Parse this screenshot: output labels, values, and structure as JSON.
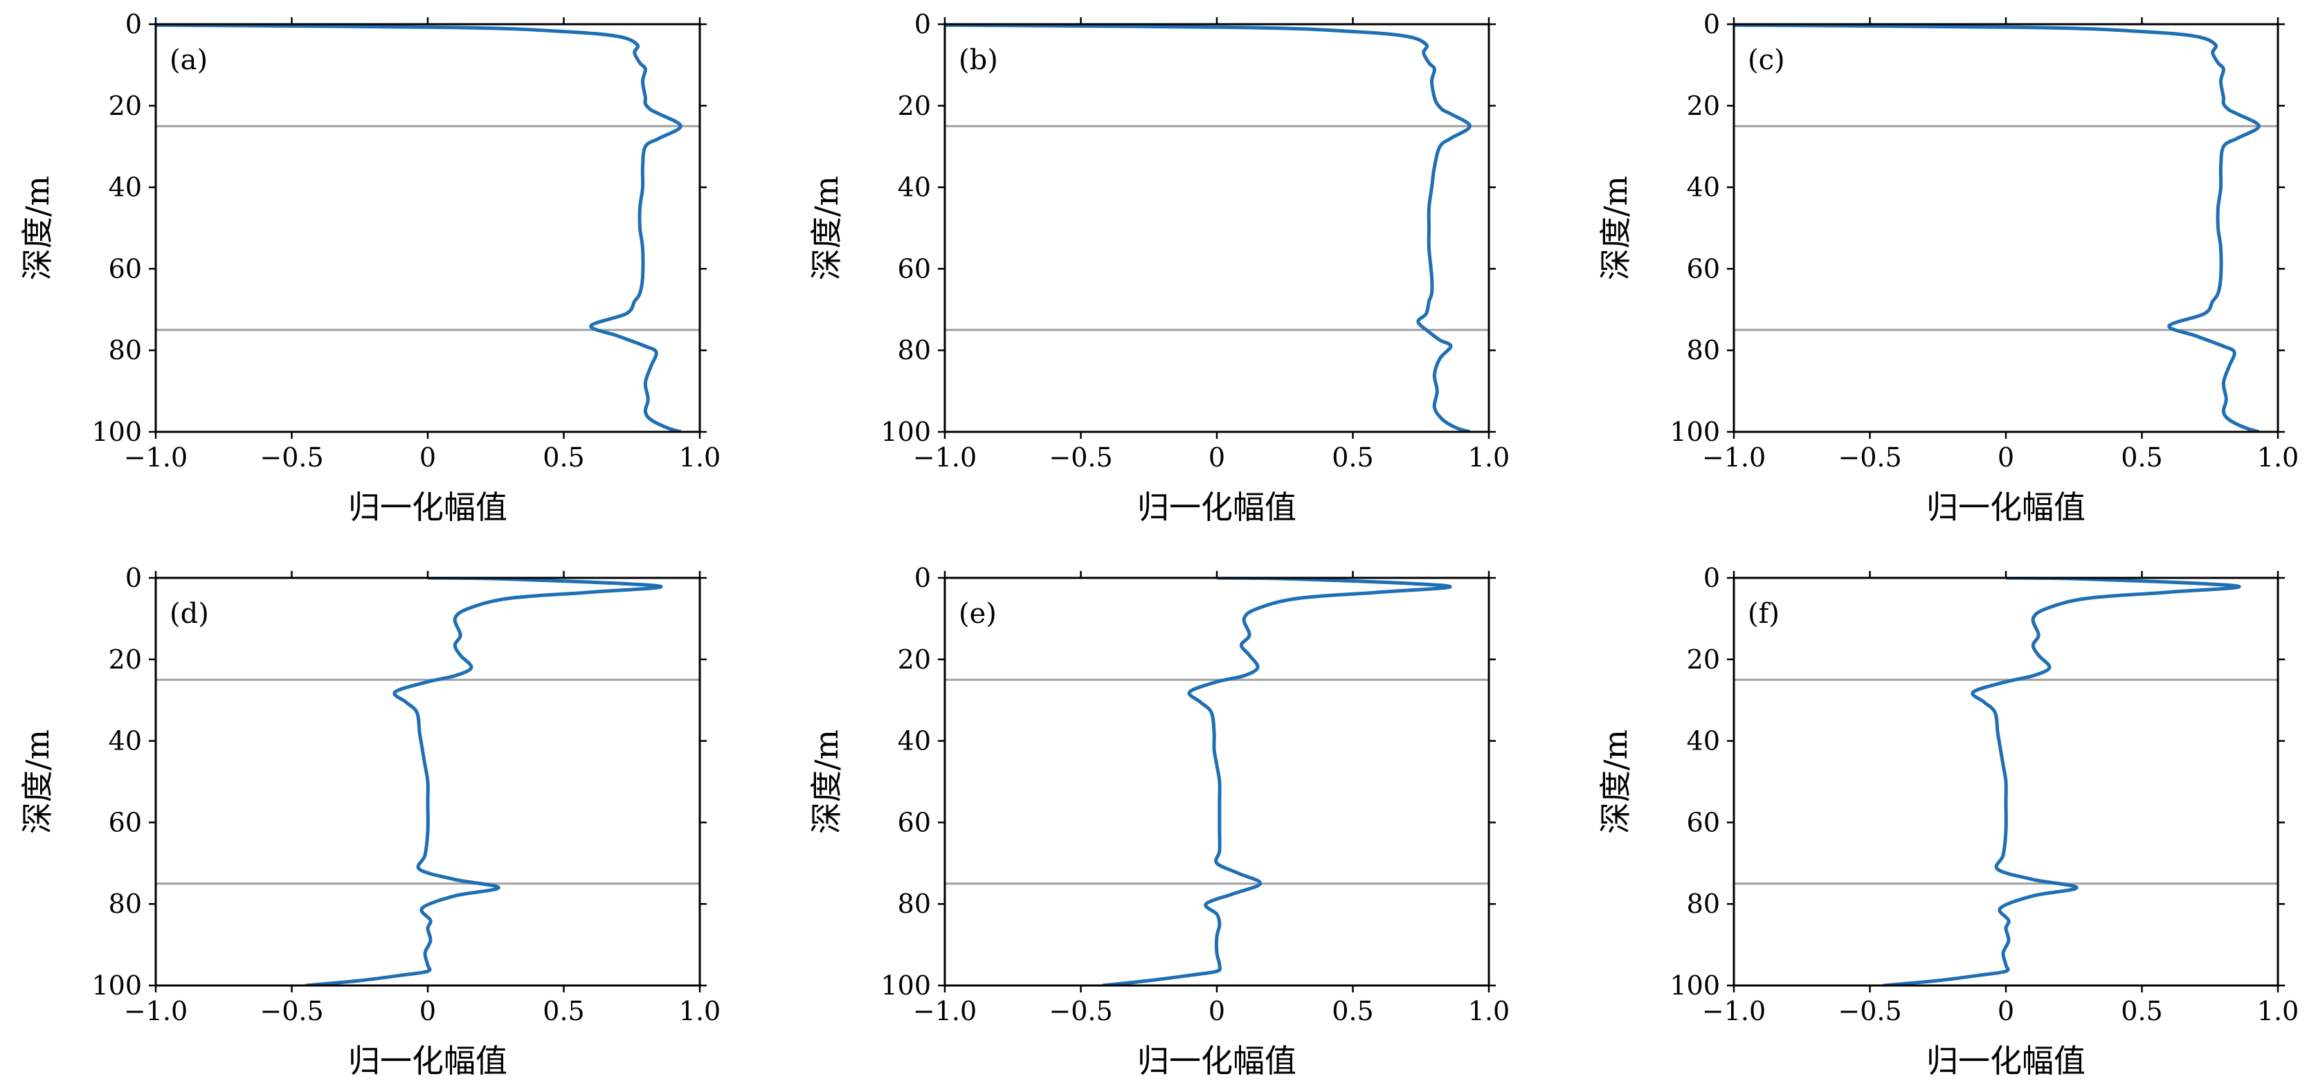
{
  "chart_data": [
    {
      "type": "line",
      "panel_label": "(a)",
      "xlabel": "归一化幅值",
      "ylabel": "深度/m",
      "xlim": [
        -1.0,
        1.0
      ],
      "ylim": [
        0,
        100
      ],
      "y_inverted": true,
      "xticks": [
        "−1.0",
        "−0.5",
        "0",
        "0.5",
        "1.0"
      ],
      "yticks": [
        "0",
        "20",
        "40",
        "60",
        "80",
        "100"
      ],
      "grid": false,
      "reference_lines_depth": [
        25,
        75
      ],
      "series": [
        {
          "x": [
            -1.0,
            0.1,
            0.5,
            0.7,
            0.77,
            0.76,
            0.78,
            0.8,
            0.79,
            0.8,
            0.8,
            0.82,
            0.85,
            0.93,
            0.85,
            0.8,
            0.79,
            0.79,
            0.78,
            0.78,
            0.79,
            0.79,
            0.78,
            0.76,
            0.73,
            0.6,
            0.7,
            0.8,
            0.84,
            0.82,
            0.8,
            0.81,
            0.8,
            0.82,
            0.88,
            0.93
          ],
          "y": [
            0.2,
            0.8,
            1.8,
            3.0,
            5.0,
            7.0,
            9.5,
            11.0,
            14.0,
            18.0,
            19.5,
            21.0,
            22.0,
            25.0,
            28.0,
            30.0,
            35.0,
            40.0,
            45.0,
            50.0,
            55.0,
            62.0,
            66.0,
            68.0,
            71.0,
            74.0,
            76.5,
            79.0,
            80.5,
            84.0,
            88.0,
            92.0,
            95.0,
            97.0,
            99.0,
            100.0
          ]
        }
      ]
    },
    {
      "type": "line",
      "panel_label": "(b)",
      "xlabel": "归一化幅值",
      "ylabel": "深度/m",
      "xlim": [
        -1.0,
        1.0
      ],
      "ylim": [
        0,
        100
      ],
      "y_inverted": true,
      "xticks": [
        "−1.0",
        "−0.5",
        "0",
        "0.5",
        "1.0"
      ],
      "yticks": [
        "0",
        "20",
        "40",
        "60",
        "80",
        "100"
      ],
      "grid": false,
      "reference_lines_depth": [
        25,
        75
      ],
      "series": [
        {
          "x": [
            -1.0,
            0.1,
            0.5,
            0.7,
            0.77,
            0.76,
            0.78,
            0.8,
            0.79,
            0.8,
            0.81,
            0.83,
            0.86,
            0.93,
            0.86,
            0.82,
            0.8,
            0.79,
            0.78,
            0.78,
            0.78,
            0.79,
            0.79,
            0.78,
            0.77,
            0.74,
            0.78,
            0.82,
            0.86,
            0.82,
            0.8,
            0.81,
            0.8,
            0.83,
            0.88,
            0.93
          ],
          "y": [
            0.2,
            0.8,
            1.8,
            3.0,
            5.0,
            7.0,
            9.5,
            11.0,
            14.0,
            18.0,
            19.5,
            21.0,
            22.0,
            25.0,
            28.0,
            30.0,
            35.0,
            40.0,
            45.0,
            50.0,
            55.0,
            62.0,
            66.0,
            68.0,
            71.0,
            73.0,
            75.5,
            77.5,
            79.0,
            82.0,
            86.0,
            90.0,
            94.0,
            97.0,
            99.0,
            100.0
          ]
        }
      ]
    },
    {
      "type": "line",
      "panel_label": "(c)",
      "xlabel": "归一化幅值",
      "ylabel": "深度/m",
      "xlim": [
        -1.0,
        1.0
      ],
      "ylim": [
        0,
        100
      ],
      "y_inverted": true,
      "xticks": [
        "−1.0",
        "−0.5",
        "0",
        "0.5",
        "1.0"
      ],
      "yticks": [
        "0",
        "20",
        "40",
        "60",
        "80",
        "100"
      ],
      "grid": false,
      "reference_lines_depth": [
        25,
        75
      ],
      "series": [
        {
          "x": [
            -1.0,
            0.1,
            0.5,
            0.7,
            0.77,
            0.76,
            0.78,
            0.8,
            0.79,
            0.8,
            0.8,
            0.82,
            0.85,
            0.93,
            0.85,
            0.8,
            0.79,
            0.79,
            0.78,
            0.78,
            0.79,
            0.79,
            0.78,
            0.76,
            0.73,
            0.6,
            0.7,
            0.8,
            0.84,
            0.82,
            0.8,
            0.81,
            0.8,
            0.82,
            0.88,
            0.93
          ],
          "y": [
            0.2,
            0.8,
            1.8,
            3.0,
            5.0,
            7.0,
            9.5,
            11.0,
            14.0,
            18.0,
            19.5,
            21.0,
            22.0,
            25.0,
            28.0,
            30.0,
            35.0,
            40.0,
            45.0,
            50.0,
            55.0,
            62.0,
            66.0,
            68.0,
            71.0,
            74.0,
            76.5,
            79.0,
            80.5,
            84.0,
            88.0,
            92.0,
            95.0,
            97.0,
            99.0,
            100.0
          ]
        }
      ]
    },
    {
      "type": "line",
      "panel_label": "(d)",
      "xlabel": "归一化幅值",
      "ylabel": "深度/m",
      "xlim": [
        -1.0,
        1.0
      ],
      "ylim": [
        0,
        100
      ],
      "y_inverted": true,
      "xticks": [
        "−1.0",
        "−0.5",
        "0",
        "0.5",
        "1.0"
      ],
      "yticks": [
        "0",
        "20",
        "40",
        "60",
        "80",
        "100"
      ],
      "grid": false,
      "reference_lines_depth": [
        25,
        75
      ],
      "series": [
        {
          "x": [
            0.0,
            0.3,
            0.85,
            0.6,
            0.3,
            0.15,
            0.1,
            0.12,
            0.1,
            0.12,
            0.16,
            0.1,
            0.0,
            -0.12,
            -0.08,
            -0.04,
            -0.03,
            -0.02,
            -0.01,
            0.0,
            0.0,
            0.0,
            -0.01,
            -0.03,
            0.1,
            0.26,
            0.1,
            -0.02,
            0.01,
            0.0,
            0.01,
            -0.01,
            0.0,
            0.0,
            -0.1,
            -0.25,
            -0.45
          ],
          "y": [
            0.0,
            0.3,
            2.0,
            3.5,
            5.0,
            7.5,
            10.0,
            14.0,
            16.5,
            19.0,
            22.0,
            24.0,
            25.5,
            28.0,
            30.5,
            33.0,
            38.0,
            42.0,
            46.0,
            50.0,
            55.0,
            62.0,
            68.0,
            71.5,
            74.0,
            76.0,
            78.0,
            81.0,
            84.0,
            86.0,
            89.0,
            92.0,
            95.0,
            96.5,
            97.5,
            98.8,
            100.0
          ]
        }
      ]
    },
    {
      "type": "line",
      "panel_label": "(e)",
      "xlabel": "归一化幅值",
      "ylabel": "深度/m",
      "xlim": [
        -1.0,
        1.0
      ],
      "ylim": [
        0,
        100
      ],
      "y_inverted": true,
      "xticks": [
        "−1.0",
        "−0.5",
        "0",
        "0.5",
        "1.0"
      ],
      "yticks": [
        "0",
        "20",
        "40",
        "60",
        "80",
        "100"
      ],
      "grid": false,
      "reference_lines_depth": [
        25,
        75
      ],
      "series": [
        {
          "x": [
            0.0,
            0.3,
            0.85,
            0.6,
            0.3,
            0.15,
            0.1,
            0.12,
            0.09,
            0.12,
            0.15,
            0.1,
            0.0,
            -0.1,
            -0.06,
            -0.02,
            -0.01,
            -0.01,
            0.0,
            0.01,
            0.01,
            0.01,
            0.01,
            0.0,
            0.08,
            0.16,
            0.06,
            -0.04,
            0.0,
            0.01,
            0.0,
            0.0,
            0.01,
            0.0,
            -0.1,
            -0.25,
            -0.42
          ],
          "y": [
            0.0,
            0.3,
            2.0,
            3.5,
            5.0,
            7.5,
            10.0,
            14.0,
            16.5,
            19.0,
            22.0,
            24.0,
            25.5,
            28.0,
            30.5,
            33.0,
            38.0,
            42.0,
            46.0,
            50.0,
            55.0,
            62.0,
            67.0,
            70.0,
            72.5,
            75.0,
            77.5,
            80.0,
            82.5,
            85.0,
            88.0,
            92.0,
            95.0,
            96.5,
            97.5,
            98.8,
            100.0
          ]
        }
      ]
    },
    {
      "type": "line",
      "panel_label": "(f)",
      "xlabel": "归一化幅值",
      "ylabel": "深度/m",
      "xlim": [
        -1.0,
        1.0
      ],
      "ylim": [
        0,
        100
      ],
      "y_inverted": true,
      "xticks": [
        "−1.0",
        "−0.5",
        "0",
        "0.5",
        "1.0"
      ],
      "yticks": [
        "0",
        "20",
        "40",
        "60",
        "80",
        "100"
      ],
      "grid": false,
      "reference_lines_depth": [
        25,
        75
      ],
      "series": [
        {
          "x": [
            0.0,
            0.3,
            0.85,
            0.6,
            0.3,
            0.15,
            0.1,
            0.12,
            0.1,
            0.12,
            0.16,
            0.1,
            0.0,
            -0.12,
            -0.08,
            -0.04,
            -0.03,
            -0.02,
            -0.01,
            0.0,
            0.0,
            0.0,
            -0.01,
            -0.03,
            0.1,
            0.26,
            0.1,
            -0.02,
            0.01,
            0.0,
            0.01,
            -0.01,
            0.0,
            0.0,
            -0.1,
            -0.25,
            -0.45
          ],
          "y": [
            0.0,
            0.3,
            2.0,
            3.5,
            5.0,
            7.5,
            10.0,
            14.0,
            16.5,
            19.0,
            22.0,
            24.0,
            25.5,
            28.0,
            30.5,
            33.0,
            38.0,
            42.0,
            46.0,
            50.0,
            55.0,
            62.0,
            68.0,
            71.5,
            74.0,
            76.0,
            78.0,
            81.0,
            84.0,
            86.0,
            89.0,
            92.0,
            95.0,
            96.5,
            97.5,
            98.8,
            100.0
          ]
        }
      ]
    }
  ],
  "colors": {
    "curve": "#1f6fb4",
    "reference_line": "#a0a0a0",
    "frame": "#000000",
    "background": "#ffffff"
  }
}
